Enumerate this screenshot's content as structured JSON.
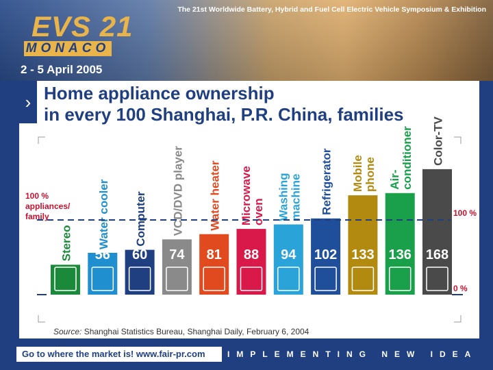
{
  "header": {
    "symposium": "The 21st Worldwide Battery, Hybrid and Fuel Cell Electric Vehicle Symposium & Exhibition",
    "evs": "EVS 21",
    "monaco": "MONACO",
    "dates": "2 - 5 April 2005"
  },
  "title_line1": "Home appliance ownership",
  "title_line2": "in every 100 Shanghai, P.R. China, families",
  "source_label": "Source:",
  "source_text": "Shanghai Statistics Bureau, Shanghai Daily, February 6, 2004",
  "footer": {
    "goto": "Go to where the market is!   www.fair-pr.com",
    "slogan": "IMPLEMENTING NEW IDEAS"
  },
  "chart_data": {
    "type": "bar",
    "categories": [
      [
        "Stereo"
      ],
      [
        "Water cooler"
      ],
      [
        "Computer"
      ],
      [
        "VCD/DVD player"
      ],
      [
        "Water heater"
      ],
      [
        "Microwave",
        "oven"
      ],
      [
        "Washing",
        "machine"
      ],
      [
        "Refrigerator"
      ],
      [
        "Mobile",
        "phone"
      ],
      [
        "Air-",
        "conditioner"
      ],
      [
        "Color-TV"
      ]
    ],
    "values": [
      40,
      56,
      60,
      74,
      81,
      88,
      94,
      102,
      133,
      136,
      168
    ],
    "colors": [
      "#1a8a3a",
      "#1f8fcf",
      "#1f3f80",
      "#8a8a8a",
      "#e14a1f",
      "#d8194a",
      "#2aa3d8",
      "#1f4f9a",
      "#b38a10",
      "#1aa04a",
      "#4a4a4a"
    ],
    "icons": [
      "stereo-icon",
      "water-cooler-icon",
      "computer-icon",
      "dvd-player-icon",
      "water-heater-icon",
      "microwave-icon",
      "washing-machine-icon",
      "refrigerator-icon",
      "mobile-phone-icon",
      "air-conditioner-icon",
      "tv-icon"
    ],
    "ref_label_left": [
      "100 %",
      "appliances/",
      "family"
    ],
    "ref_label_right": "100 %",
    "zero_label": "0 %",
    "ylim": [
      0,
      168
    ]
  }
}
